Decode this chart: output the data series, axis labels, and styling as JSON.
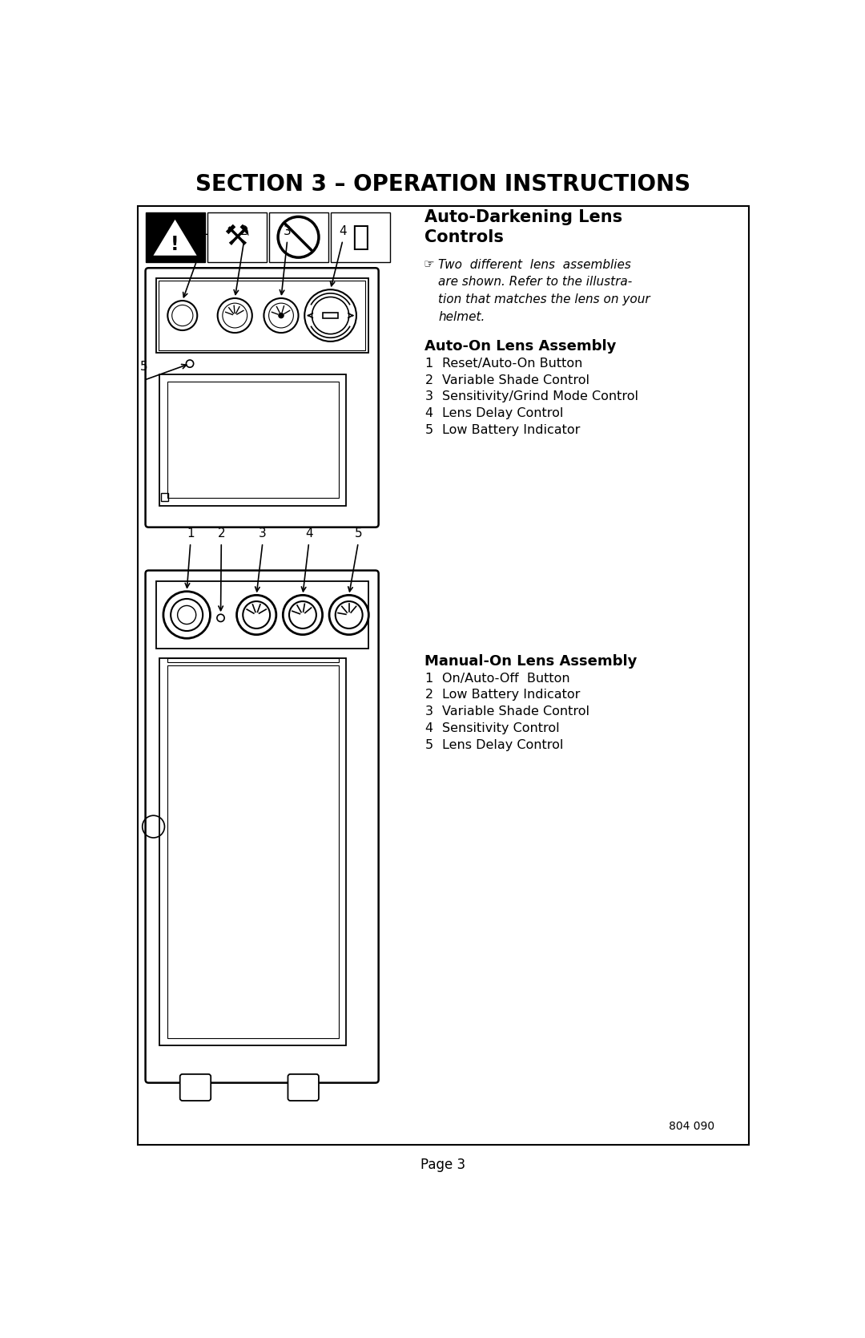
{
  "page_title": "SECTION 3 – OPERATION INSTRUCTIONS",
  "section_heading": "Auto-Darkening Lens\nControls",
  "note_text": "Two  different  lens  assemblies\nare shown. Refer to the illustra-\ntion that matches the lens on your\nhelmet.",
  "assembly1_heading": "Auto-On Lens Assembly",
  "assembly1_items": [
    [
      "1",
      "Reset/Auto-On Button"
    ],
    [
      "2",
      "Variable Shade Control"
    ],
    [
      "3",
      "Sensitivity/Grind Mode Control"
    ],
    [
      "4",
      "Lens Delay Control"
    ],
    [
      "5",
      "Low Battery Indicator"
    ]
  ],
  "assembly2_heading": "Manual-On Lens Assembly",
  "assembly2_items": [
    [
      "1",
      "On/Auto-Off  Button"
    ],
    [
      "2",
      "Low Battery Indicator"
    ],
    [
      "3",
      "Variable Shade Control"
    ],
    [
      "4",
      "Sensitivity Control"
    ],
    [
      "5",
      "Lens Delay Control"
    ]
  ],
  "page_number": "Page 3",
  "doc_number": "804 090",
  "bg_color": "#ffffff",
  "text_color": "#000000",
  "title_fontsize": 20,
  "body_fontsize": 11.5,
  "heading2_fontsize": 13,
  "note_fontsize": 11
}
